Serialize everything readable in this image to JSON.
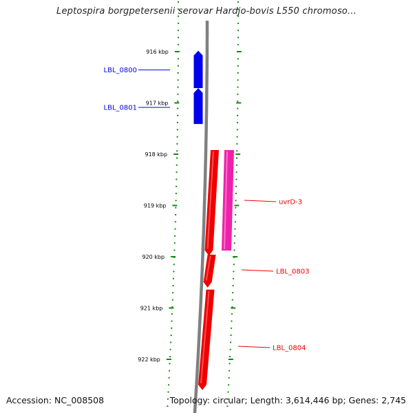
{
  "title": "Leptospira borgpetersenii serovar Hardjo-bovis L550 chromoso...",
  "footer": {
    "accession": "Accession: NC_008508",
    "summary": "Topology: circular; Length: 3,614,446 bp; Genes: 2,745"
  },
  "colors": {
    "backbone": "#808080",
    "tick": "#118811",
    "forward_gene": "#0000ee",
    "reverse_gene": "#ee0000",
    "rna_gene": "#ee22aa"
  },
  "ticks": [
    {
      "label": "916 kbp",
      "pos_kbp": 916
    },
    {
      "label": "917 kbp",
      "pos_kbp": 917
    },
    {
      "label": "918 kbp",
      "pos_kbp": 918
    },
    {
      "label": "919 kbp",
      "pos_kbp": 919
    },
    {
      "label": "920 kbp",
      "pos_kbp": 920
    },
    {
      "label": "921 kbp",
      "pos_kbp": 921
    },
    {
      "label": "922 kbp",
      "pos_kbp": 922
    }
  ],
  "genes": [
    {
      "name": "LBL_0800",
      "strand": "forward",
      "start_kbp": 915.82,
      "end_kbp": 916.55
    },
    {
      "name": "LBL_0801",
      "strand": "forward",
      "start_kbp": 916.55,
      "end_kbp": 917.25
    },
    {
      "name": "uvrD-3",
      "strand": "reverse",
      "start_kbp": 917.88,
      "end_kbp": 919.98,
      "secondary_start_kbp": 917.88,
      "secondary_end_kbp": 919.88
    },
    {
      "name": "LBL_0803",
      "strand": "reverse",
      "start_kbp": 919.92,
      "end_kbp": 920.6
    },
    {
      "name": "LBL_0804",
      "strand": "reverse",
      "start_kbp": 920.6,
      "end_kbp": 922.6
    }
  ]
}
